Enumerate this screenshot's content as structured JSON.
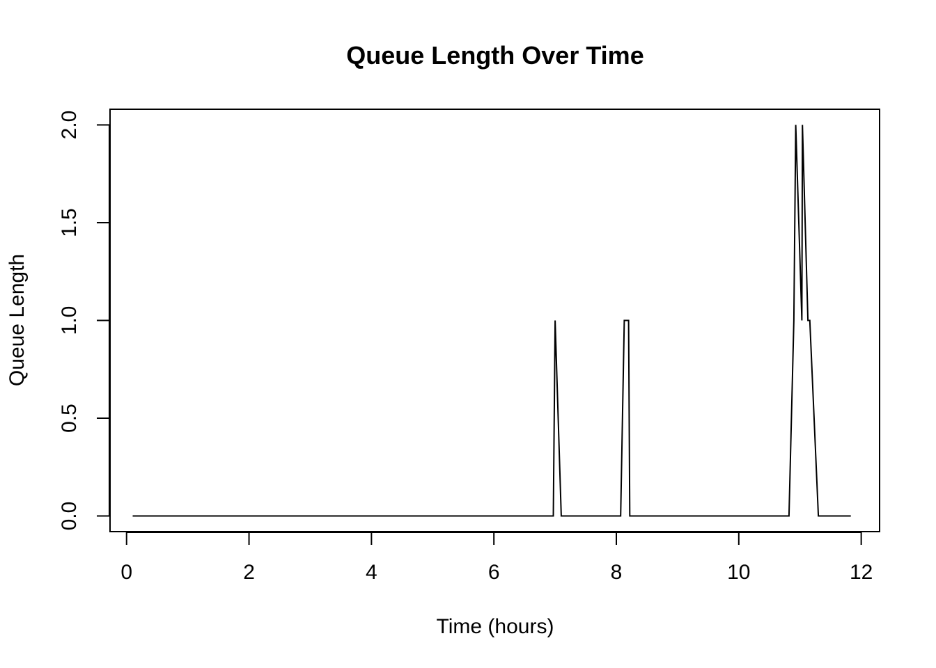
{
  "chart_data": {
    "type": "line",
    "title": "Queue Length Over Time",
    "xlabel": "Time (hours)",
    "ylabel": "Queue Length",
    "xlim": [
      -0.27,
      12.3
    ],
    "ylim": [
      -0.08,
      2.08
    ],
    "x_ticks": [
      0,
      2,
      4,
      6,
      8,
      10,
      12
    ],
    "x_tick_labels": [
      "0",
      "2",
      "4",
      "6",
      "8",
      "10",
      "12"
    ],
    "y_ticks": [
      0.0,
      0.5,
      1.0,
      1.5,
      2.0
    ],
    "y_tick_labels": [
      "0.0",
      "0.5",
      "1.0",
      "1.5",
      "2.0"
    ],
    "grid": false,
    "legend": "none",
    "series": [
      {
        "color": "#000000",
        "x": [
          0.1,
          6.97,
          7.0,
          7.1,
          8.07,
          8.13,
          8.2,
          8.22,
          10.82,
          10.9,
          10.93,
          11.03,
          11.04,
          11.13,
          11.16,
          11.3,
          11.83
        ],
        "y": [
          0,
          0,
          1,
          0,
          0,
          1,
          1,
          0,
          0,
          1,
          2,
          1,
          2,
          1,
          1,
          0,
          0
        ]
      }
    ]
  }
}
